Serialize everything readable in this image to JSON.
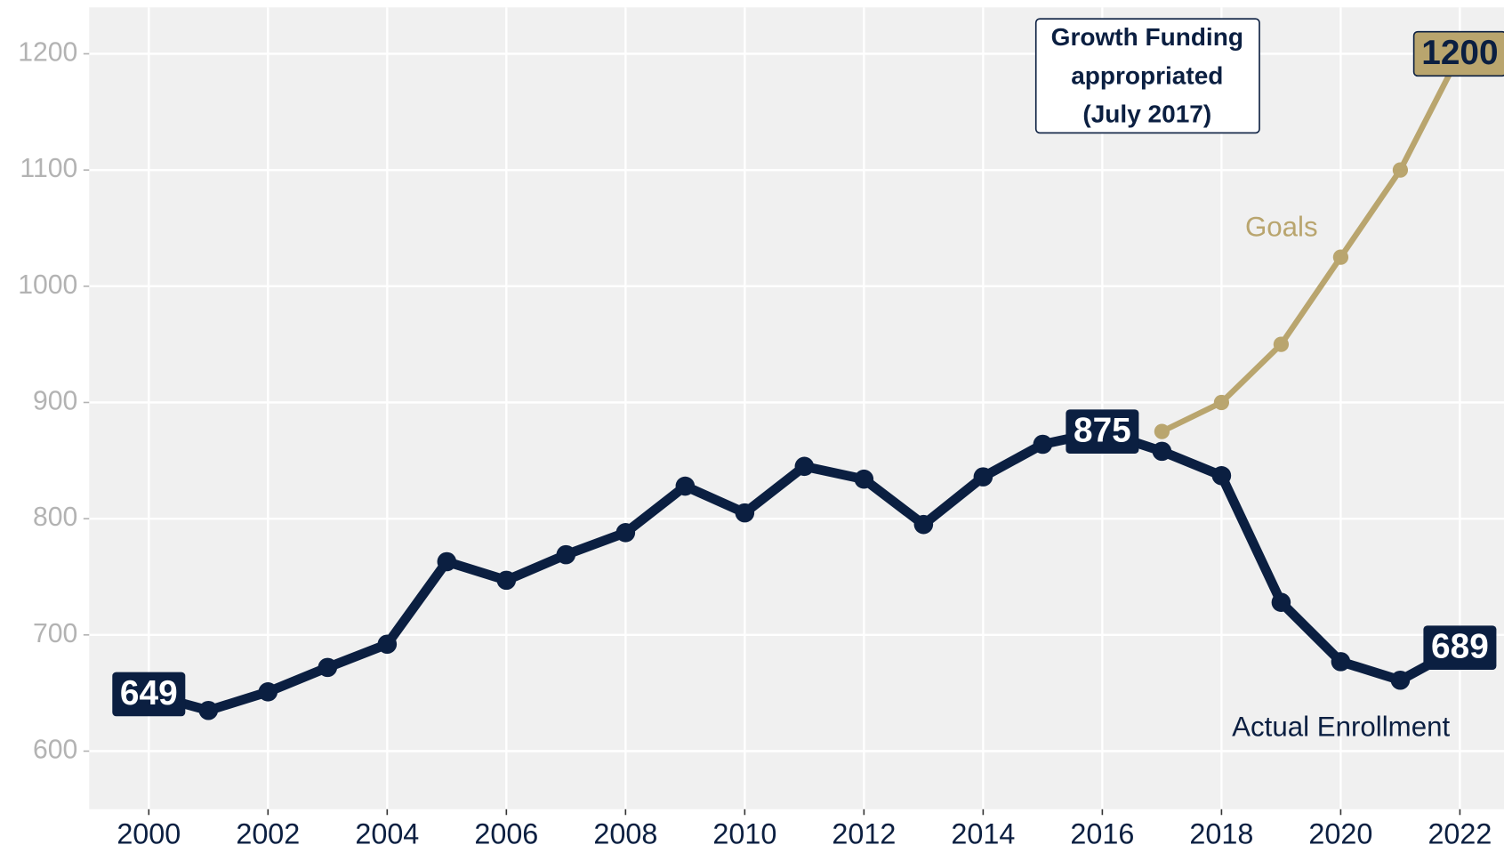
{
  "chart_data": {
    "type": "line",
    "x": [
      2000,
      2001,
      2002,
      2003,
      2004,
      2005,
      2006,
      2007,
      2008,
      2009,
      2010,
      2011,
      2012,
      2013,
      2014,
      2015,
      2016,
      2017,
      2018,
      2019,
      2020,
      2021,
      2022
    ],
    "series": [
      {
        "name": "Actual Enrollment",
        "color": "#0b1f41",
        "values": [
          649,
          635,
          651,
          672,
          692,
          763,
          747,
          769,
          788,
          828,
          805,
          845,
          834,
          795,
          836,
          864,
          875,
          858,
          837,
          728,
          677,
          661,
          689
        ]
      },
      {
        "name": "Goals",
        "color": "#b9a56e",
        "values": [
          null,
          null,
          null,
          null,
          null,
          null,
          null,
          null,
          null,
          null,
          null,
          null,
          null,
          null,
          null,
          null,
          null,
          875,
          900,
          950,
          1025,
          1100,
          1200
        ]
      }
    ],
    "annotation": [
      "Growth Funding",
      "appropriated",
      "(July 2017)"
    ],
    "xlim": [
      1999,
      2022.74
    ],
    "xticks": [
      2000,
      2002,
      2004,
      2006,
      2008,
      2010,
      2012,
      2014,
      2016,
      2018,
      2020,
      2022
    ],
    "ylim": [
      550,
      1240
    ],
    "yticks": [
      600,
      700,
      800,
      900,
      1000,
      1100,
      1200
    ],
    "grid": true
  }
}
